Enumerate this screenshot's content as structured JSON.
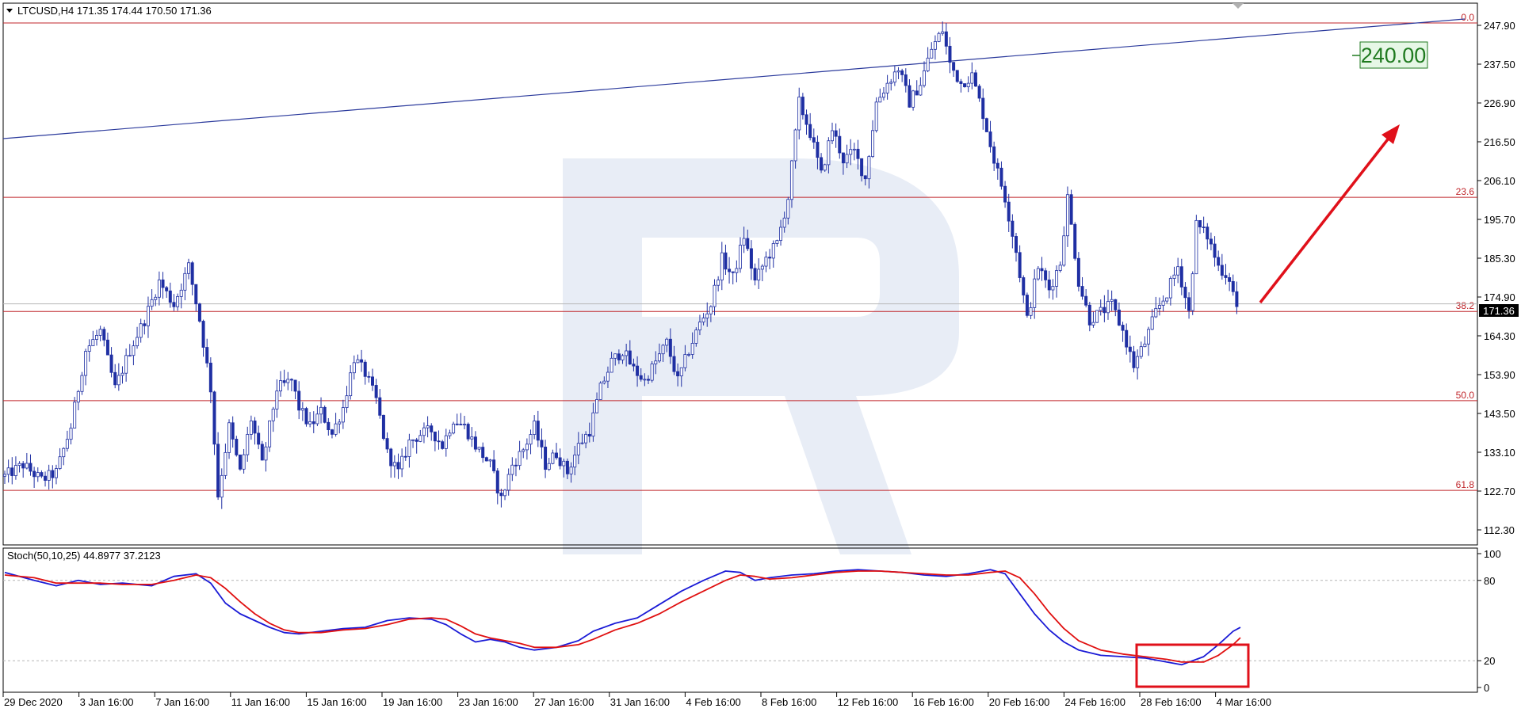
{
  "header": {
    "symbol_info": "LTCUSD,H4  171.35 174.44 170.50 171.36",
    "stoch_info": "Stoch(50,10,25) 44.8977 37.2123"
  },
  "target_label": "240.00",
  "current_price": "171.36",
  "colors": {
    "candles": "#1f2fa3",
    "fib_lines": "#c0262b",
    "trendline": "#2b3a9c",
    "arrow": "#e0101a",
    "stoch_main": "#1a1ad6",
    "stoch_signal": "#e01010",
    "highlight_box": "#e0101a",
    "target_bg": "#e6f7e6",
    "target_text": "#1f7a1f",
    "watermark": "#e8edf6"
  },
  "chart_data": [
    {
      "type": "candlestick",
      "title": "LTCUSD,H4",
      "ylim": [
        109.0,
        251.0
      ],
      "price_ticks": [
        "247.90",
        "237.50",
        "226.90",
        "216.50",
        "206.10",
        "195.70",
        "185.30",
        "174.90",
        "164.30",
        "153.90",
        "143.50",
        "133.10",
        "122.70",
        "112.30"
      ],
      "time_ticks": [
        "29 Dec 2020",
        "3 Jan 16:00",
        "7 Jan 16:00",
        "11 Jan 16:00",
        "15 Jan 16:00",
        "19 Jan 16:00",
        "23 Jan 16:00",
        "27 Jan 16:00",
        "31 Jan 16:00",
        "4 Feb 16:00",
        "8 Feb 16:00",
        "12 Feb 16:00",
        "16 Feb 16:00",
        "20 Feb 16:00",
        "24 Feb 16:00",
        "28 Feb 16:00",
        "4 Mar 16:00"
      ],
      "fib_levels": [
        {
          "label": "0.0",
          "price": 245.8
        },
        {
          "label": "23.6",
          "price": 200.1
        },
        {
          "label": "38.2",
          "price": 170.2
        },
        {
          "label": "50.0",
          "price": 146.8
        },
        {
          "label": "61.8",
          "price": 123.3
        }
      ],
      "last_price": 171.36,
      "target_price": 240.0,
      "waypoints": [
        [
          0,
          127
        ],
        [
          5,
          130
        ],
        [
          10,
          126
        ],
        [
          14,
          128
        ],
        [
          18,
          140
        ],
        [
          22,
          160
        ],
        [
          26,
          165
        ],
        [
          30,
          150
        ],
        [
          34,
          160
        ],
        [
          38,
          168
        ],
        [
          42,
          178
        ],
        [
          46,
          172
        ],
        [
          50,
          182
        ],
        [
          53,
          168
        ],
        [
          56,
          150
        ],
        [
          58,
          122
        ],
        [
          61,
          140
        ],
        [
          64,
          128
        ],
        [
          67,
          142
        ],
        [
          70,
          130
        ],
        [
          74,
          150
        ],
        [
          78,
          152
        ],
        [
          80,
          145
        ],
        [
          83,
          140
        ],
        [
          86,
          144
        ],
        [
          89,
          138
        ],
        [
          92,
          145
        ],
        [
          95,
          158
        ],
        [
          98,
          154
        ],
        [
          101,
          147
        ],
        [
          104,
          133
        ],
        [
          107,
          128
        ],
        [
          110,
          136
        ],
        [
          113,
          138
        ],
        [
          116,
          139
        ],
        [
          119,
          135
        ],
        [
          122,
          142
        ],
        [
          125,
          140
        ],
        [
          128,
          135
        ],
        [
          132,
          130
        ],
        [
          135,
          121
        ],
        [
          138,
          130
        ],
        [
          141,
          134
        ],
        [
          144,
          140
        ],
        [
          147,
          130
        ],
        [
          150,
          133
        ],
        [
          153,
          128
        ],
        [
          156,
          135
        ],
        [
          159,
          139
        ],
        [
          162,
          150
        ],
        [
          165,
          157
        ],
        [
          168,
          160
        ],
        [
          171,
          155
        ],
        [
          174,
          152
        ],
        [
          177,
          157
        ],
        [
          180,
          162
        ],
        [
          183,
          152
        ],
        [
          186,
          160
        ],
        [
          189,
          167
        ],
        [
          192,
          172
        ],
        [
          195,
          184
        ],
        [
          198,
          179
        ],
        [
          201,
          190
        ],
        [
          204,
          178
        ],
        [
          207,
          184
        ],
        [
          210,
          188
        ],
        [
          213,
          200
        ],
        [
          216,
          225
        ],
        [
          219,
          217
        ],
        [
          222,
          206
        ],
        [
          225,
          218
        ],
        [
          228,
          210
        ],
        [
          231,
          212
        ],
        [
          234,
          205
        ],
        [
          237,
          225
        ],
        [
          240,
          230
        ],
        [
          243,
          234
        ],
        [
          246,
          225
        ],
        [
          249,
          230
        ],
        [
          252,
          239
        ],
        [
          255,
          244
        ],
        [
          257,
          235
        ],
        [
          260,
          230
        ],
        [
          263,
          232
        ],
        [
          266,
          222
        ],
        [
          269,
          210
        ],
        [
          272,
          200
        ],
        [
          275,
          186
        ],
        [
          278,
          168
        ],
        [
          281,
          182
        ],
        [
          284,
          176
        ],
        [
          287,
          183
        ],
        [
          289,
          200
        ],
        [
          292,
          178
        ],
        [
          295,
          168
        ],
        [
          298,
          170
        ],
        [
          301,
          172
        ],
        [
          304,
          165
        ],
        [
          307,
          156
        ],
        [
          310,
          162
        ],
        [
          313,
          170
        ],
        [
          316,
          175
        ],
        [
          319,
          182
        ],
        [
          322,
          170
        ],
        [
          324,
          193
        ],
        [
          327,
          190
        ],
        [
          330,
          182
        ],
        [
          333,
          179
        ],
        [
          335,
          171.4
        ]
      ]
    },
    {
      "type": "line",
      "title": "Stoch(50,10,25)",
      "ylim": [
        0,
        100
      ],
      "y_ticks": [
        "100",
        "80",
        "20",
        "0"
      ],
      "levels": [
        80,
        20
      ],
      "series": [
        {
          "name": "main",
          "values": [
            [
              0,
              86
            ],
            [
              8,
              80
            ],
            [
              14,
              76
            ],
            [
              20,
              80
            ],
            [
              26,
              77
            ],
            [
              32,
              78
            ],
            [
              40,
              76
            ],
            [
              46,
              83
            ],
            [
              52,
              85
            ],
            [
              56,
              78
            ],
            [
              60,
              63
            ],
            [
              64,
              55
            ],
            [
              68,
              50
            ],
            [
              72,
              45
            ],
            [
              76,
              41
            ],
            [
              80,
              40
            ],
            [
              86,
              42
            ],
            [
              92,
              44
            ],
            [
              98,
              45
            ],
            [
              104,
              50
            ],
            [
              110,
              52
            ],
            [
              116,
              51
            ],
            [
              120,
              47
            ],
            [
              124,
              40
            ],
            [
              128,
              34
            ],
            [
              132,
              36
            ],
            [
              136,
              34
            ],
            [
              140,
              30
            ],
            [
              144,
              28
            ],
            [
              150,
              30
            ],
            [
              156,
              35
            ],
            [
              160,
              42
            ],
            [
              166,
              48
            ],
            [
              172,
              52
            ],
            [
              178,
              62
            ],
            [
              184,
              72
            ],
            [
              190,
              80
            ],
            [
              196,
              87
            ],
            [
              200,
              86
            ],
            [
              204,
              80
            ],
            [
              208,
              82
            ],
            [
              214,
              84
            ],
            [
              220,
              85
            ],
            [
              226,
              87
            ],
            [
              232,
              88
            ],
            [
              238,
              87
            ],
            [
              244,
              86
            ],
            [
              250,
              84
            ],
            [
              256,
              83
            ],
            [
              262,
              85
            ],
            [
              268,
              88
            ],
            [
              272,
              85
            ],
            [
              276,
              70
            ],
            [
              280,
              55
            ],
            [
              284,
              43
            ],
            [
              288,
              34
            ],
            [
              292,
              28
            ],
            [
              298,
              24
            ],
            [
              304,
              23
            ],
            [
              310,
              22
            ],
            [
              316,
              19
            ],
            [
              320,
              17
            ],
            [
              326,
              23
            ],
            [
              330,
              32
            ],
            [
              334,
              42
            ],
            [
              336,
              44.9
            ]
          ]
        },
        {
          "name": "signal",
          "values": [
            [
              0,
              84
            ],
            [
              8,
              82
            ],
            [
              14,
              78
            ],
            [
              20,
              78
            ],
            [
              26,
              78
            ],
            [
              32,
              77
            ],
            [
              40,
              77
            ],
            [
              46,
              80
            ],
            [
              52,
              84
            ],
            [
              56,
              82
            ],
            [
              60,
              74
            ],
            [
              64,
              64
            ],
            [
              68,
              55
            ],
            [
              72,
              48
            ],
            [
              76,
              43
            ],
            [
              80,
              41
            ],
            [
              86,
              41
            ],
            [
              92,
              43
            ],
            [
              98,
              44
            ],
            [
              104,
              47
            ],
            [
              110,
              51
            ],
            [
              116,
              52
            ],
            [
              120,
              51
            ],
            [
              124,
              46
            ],
            [
              128,
              40
            ],
            [
              132,
              37
            ],
            [
              136,
              35
            ],
            [
              140,
              33
            ],
            [
              144,
              30
            ],
            [
              150,
              30
            ],
            [
              156,
              32
            ],
            [
              160,
              36
            ],
            [
              166,
              43
            ],
            [
              172,
              48
            ],
            [
              178,
              55
            ],
            [
              184,
              64
            ],
            [
              190,
              72
            ],
            [
              196,
              80
            ],
            [
              200,
              84
            ],
            [
              204,
              83
            ],
            [
              208,
              81
            ],
            [
              214,
              82
            ],
            [
              220,
              84
            ],
            [
              226,
              86
            ],
            [
              232,
              87
            ],
            [
              238,
              87
            ],
            [
              244,
              86
            ],
            [
              250,
              85
            ],
            [
              256,
              84
            ],
            [
              262,
              84
            ],
            [
              268,
              86
            ],
            [
              272,
              87
            ],
            [
              276,
              82
            ],
            [
              280,
              70
            ],
            [
              284,
              56
            ],
            [
              288,
              44
            ],
            [
              292,
              35
            ],
            [
              298,
              28
            ],
            [
              304,
              25
            ],
            [
              310,
              23
            ],
            [
              316,
              21
            ],
            [
              320,
              19
            ],
            [
              326,
              19
            ],
            [
              330,
              24
            ],
            [
              334,
              32
            ],
            [
              336,
              37.2
            ]
          ]
        }
      ]
    }
  ]
}
